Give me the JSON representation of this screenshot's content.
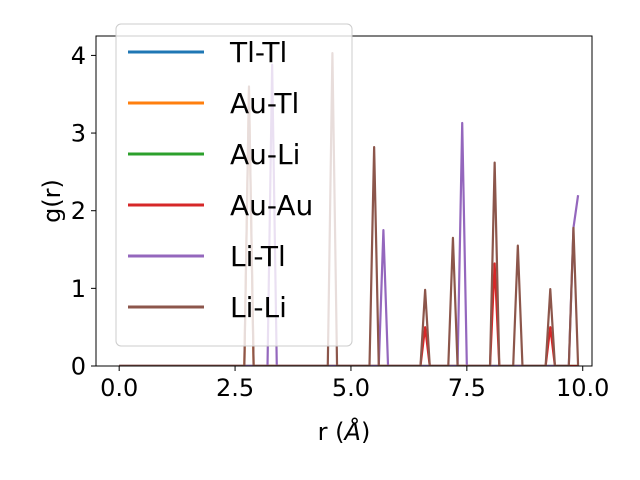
{
  "chart_data": {
    "type": "line",
    "xlabel": "r (Å)",
    "xlabel_main": "r (",
    "xlabel_unit": "Å",
    "xlabel_close": ")",
    "ylabel": "g(r)",
    "xlim": [
      -0.5,
      10.2
    ],
    "ylim": [
      0,
      4.25
    ],
    "xticks": [
      0.0,
      2.5,
      5.0,
      7.5,
      10.0
    ],
    "xtick_labels": [
      "0.0",
      "2.5",
      "5.0",
      "7.5",
      "10.0"
    ],
    "yticks": [
      0,
      1,
      2,
      3,
      4
    ],
    "ytick_labels": [
      "0",
      "1",
      "2",
      "3",
      "4"
    ],
    "grid": false,
    "legend_placement": "upper-left",
    "x": [
      0.0,
      2.7,
      2.8,
      2.9,
      3.2,
      3.3,
      3.4,
      4.5,
      4.6,
      4.7,
      5.4,
      5.5,
      5.6,
      5.7,
      5.8,
      6.5,
      6.6,
      6.7,
      7.1,
      7.2,
      7.3,
      7.4,
      7.5,
      8.0,
      8.1,
      8.2,
      8.5,
      8.6,
      8.7,
      9.2,
      9.3,
      9.4,
      9.7,
      9.8,
      9.9
    ],
    "series": [
      {
        "name": "Tl-Tl",
        "color": "#1f77b4",
        "values": [
          0,
          0,
          0,
          0,
          0,
          0,
          0,
          0,
          0,
          0,
          0,
          0,
          0,
          0,
          0,
          0,
          0,
          0,
          0,
          0,
          0,
          0,
          0,
          0,
          0,
          0,
          0,
          0,
          0,
          0,
          0,
          0,
          0,
          0,
          0
        ]
      },
      {
        "name": "Au-Tl",
        "color": "#ff7f0e",
        "values": [
          0,
          0,
          3.55,
          0,
          0,
          0,
          0,
          0,
          0,
          0,
          0,
          0,
          0,
          0,
          0,
          0,
          0,
          0,
          0,
          0,
          0,
          0,
          0,
          0,
          0,
          0,
          0,
          0,
          0,
          0,
          0,
          0,
          0,
          0,
          0
        ]
      },
      {
        "name": "Au-Li",
        "color": "#2ca02c",
        "values": [
          0,
          0,
          0,
          0,
          0,
          0,
          0,
          0,
          0,
          0,
          0,
          0,
          0,
          0,
          0,
          0,
          0,
          0,
          0,
          0,
          0,
          0,
          0,
          0,
          0,
          0,
          0,
          0,
          0,
          0,
          0,
          0,
          0,
          0,
          0
        ]
      },
      {
        "name": "Au-Au",
        "color": "#d62728",
        "values": [
          0,
          0,
          0,
          0,
          0,
          0,
          0,
          0,
          0,
          0,
          0,
          0,
          0,
          0,
          0,
          0,
          0.5,
          0,
          0,
          0,
          0,
          0,
          0,
          0,
          1.32,
          0,
          0,
          0,
          0,
          0,
          0.5,
          0,
          0,
          0,
          0
        ]
      },
      {
        "name": "Li-Tl",
        "color": "#9467bd",
        "values": [
          0,
          0,
          0,
          0,
          0,
          3.88,
          0,
          0,
          0,
          0,
          0,
          0,
          0,
          1.75,
          0,
          0,
          0,
          0,
          0,
          0,
          0,
          3.13,
          0,
          0,
          0,
          0,
          0,
          0,
          0,
          0,
          0,
          0,
          0,
          1.78,
          2.2
        ]
      },
      {
        "name": "Li-Li",
        "color": "#8c564b",
        "values": [
          0,
          0,
          3.6,
          0,
          0,
          0,
          0,
          0,
          4.03,
          0,
          0,
          2.82,
          0,
          0,
          0,
          0,
          0.98,
          0,
          0,
          1.65,
          0,
          0,
          0,
          0,
          2.62,
          0,
          0,
          1.55,
          0,
          0,
          0.99,
          0,
          0,
          1.78,
          0
        ]
      }
    ]
  }
}
